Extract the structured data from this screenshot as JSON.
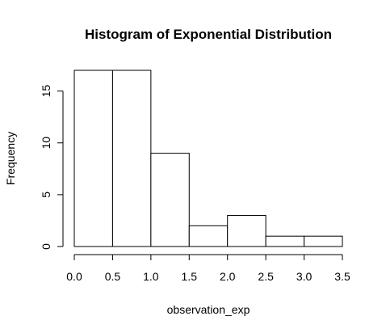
{
  "chart_data": {
    "type": "bar",
    "title": "Histogram of Exponential Distribution",
    "xlabel": "observation_exp",
    "ylabel": "Frequency",
    "bins": [
      {
        "x0": 0.0,
        "x1": 0.5,
        "count": 17
      },
      {
        "x0": 0.5,
        "x1": 1.0,
        "count": 17
      },
      {
        "x0": 1.0,
        "x1": 1.5,
        "count": 9
      },
      {
        "x0": 1.5,
        "x1": 2.0,
        "count": 2
      },
      {
        "x0": 2.0,
        "x1": 2.5,
        "count": 3
      },
      {
        "x0": 2.5,
        "x1": 3.0,
        "count": 1
      },
      {
        "x0": 3.0,
        "x1": 3.5,
        "count": 1
      }
    ],
    "xlim": [
      0.0,
      3.5
    ],
    "ylim": [
      0,
      17
    ],
    "x_ticks": [
      "0.0",
      "0.5",
      "1.0",
      "1.5",
      "2.0",
      "2.5",
      "3.0",
      "3.5"
    ],
    "y_ticks": [
      "0",
      "5",
      "10",
      "15"
    ],
    "grid": false,
    "legend": "none",
    "colors": {
      "bar_fill": "#ffffff",
      "bar_stroke": "#000000",
      "background": "#ffffff"
    }
  }
}
